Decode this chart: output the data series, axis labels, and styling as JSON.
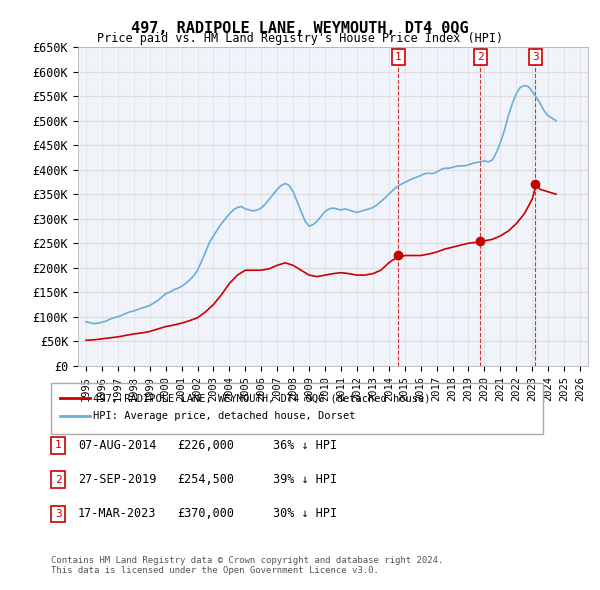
{
  "title": "497, RADIPOLE LANE, WEYMOUTH, DT4 0QG",
  "subtitle": "Price paid vs. HM Land Registry's House Price Index (HPI)",
  "ylabel_ticks": [
    "£0",
    "£50K",
    "£100K",
    "£150K",
    "£200K",
    "£250K",
    "£300K",
    "£350K",
    "£400K",
    "£450K",
    "£500K",
    "£550K",
    "£600K",
    "£650K"
  ],
  "ylim": [
    0,
    650000
  ],
  "yticks": [
    0,
    50000,
    100000,
    150000,
    200000,
    250000,
    300000,
    350000,
    400000,
    450000,
    500000,
    550000,
    600000,
    650000
  ],
  "xlim_start": 1994.5,
  "xlim_end": 2026.5,
  "hpi_color": "#6aaed6",
  "price_color": "#cc0000",
  "marker_color": "#cc0000",
  "vline_color": "#cc0000",
  "grid_color": "#dddddd",
  "bg_color": "#f0f4fa",
  "legend_label_red": "497, RADIPOLE LANE, WEYMOUTH, DT4 0QG (detached house)",
  "legend_label_blue": "HPI: Average price, detached house, Dorset",
  "footer": "Contains HM Land Registry data © Crown copyright and database right 2024.\nThis data is licensed under the Open Government Licence v3.0.",
  "sales": [
    {
      "num": 1,
      "year": 2014.6,
      "price": 226000,
      "date": "07-AUG-2014",
      "price_str": "£226,000",
      "pct": "36% ↓ HPI"
    },
    {
      "num": 2,
      "year": 2019.75,
      "price": 254500,
      "date": "27-SEP-2019",
      "price_str": "£254,500",
      "pct": "39% ↓ HPI"
    },
    {
      "num": 3,
      "year": 2023.2,
      "price": 370000,
      "date": "17-MAR-2023",
      "price_str": "£370,000",
      "pct": "30% ↓ HPI"
    }
  ],
  "hpi_data": {
    "years": [
      1995.0,
      1995.25,
      1995.5,
      1995.75,
      1996.0,
      1996.25,
      1996.5,
      1996.75,
      1997.0,
      1997.25,
      1997.5,
      1997.75,
      1998.0,
      1998.25,
      1998.5,
      1998.75,
      1999.0,
      1999.25,
      1999.5,
      1999.75,
      2000.0,
      2000.25,
      2000.5,
      2000.75,
      2001.0,
      2001.25,
      2001.5,
      2001.75,
      2002.0,
      2002.25,
      2002.5,
      2002.75,
      2003.0,
      2003.25,
      2003.5,
      2003.75,
      2004.0,
      2004.25,
      2004.5,
      2004.75,
      2005.0,
      2005.25,
      2005.5,
      2005.75,
      2006.0,
      2006.25,
      2006.5,
      2006.75,
      2007.0,
      2007.25,
      2007.5,
      2007.75,
      2008.0,
      2008.25,
      2008.5,
      2008.75,
      2009.0,
      2009.25,
      2009.5,
      2009.75,
      2010.0,
      2010.25,
      2010.5,
      2010.75,
      2011.0,
      2011.25,
      2011.5,
      2011.75,
      2012.0,
      2012.25,
      2012.5,
      2012.75,
      2013.0,
      2013.25,
      2013.5,
      2013.75,
      2014.0,
      2014.25,
      2014.5,
      2014.75,
      2015.0,
      2015.25,
      2015.5,
      2015.75,
      2016.0,
      2016.25,
      2016.5,
      2016.75,
      2017.0,
      2017.25,
      2017.5,
      2017.75,
      2018.0,
      2018.25,
      2018.5,
      2018.75,
      2019.0,
      2019.25,
      2019.5,
      2019.75,
      2020.0,
      2020.25,
      2020.5,
      2020.75,
      2021.0,
      2021.25,
      2021.5,
      2021.75,
      2022.0,
      2022.25,
      2022.5,
      2022.75,
      2023.0,
      2023.25,
      2023.5,
      2023.75,
      2024.0,
      2024.25,
      2024.5
    ],
    "values": [
      90000,
      88000,
      86000,
      87000,
      89000,
      91000,
      95000,
      98000,
      100000,
      103000,
      107000,
      110000,
      112000,
      115000,
      118000,
      120000,
      123000,
      128000,
      133000,
      140000,
      147000,
      150000,
      155000,
      158000,
      162000,
      168000,
      175000,
      183000,
      195000,
      213000,
      232000,
      252000,
      265000,
      278000,
      290000,
      300000,
      310000,
      318000,
      323000,
      325000,
      320000,
      318000,
      316000,
      318000,
      322000,
      330000,
      340000,
      350000,
      360000,
      368000,
      372000,
      368000,
      355000,
      335000,
      315000,
      295000,
      285000,
      288000,
      295000,
      305000,
      315000,
      320000,
      322000,
      320000,
      318000,
      320000,
      318000,
      315000,
      313000,
      315000,
      318000,
      320000,
      323000,
      328000,
      335000,
      342000,
      350000,
      358000,
      365000,
      370000,
      374000,
      378000,
      382000,
      385000,
      388000,
      392000,
      393000,
      392000,
      395000,
      400000,
      403000,
      403000,
      405000,
      407000,
      408000,
      408000,
      410000,
      413000,
      415000,
      416000,
      418000,
      416000,
      420000,
      435000,
      455000,
      480000,
      510000,
      535000,
      555000,
      568000,
      572000,
      570000,
      560000,
      548000,
      535000,
      520000,
      510000,
      505000,
      500000
    ]
  },
  "price_data": {
    "years": [
      1995.0,
      1995.5,
      1996.0,
      1996.5,
      1997.0,
      1997.5,
      1998.0,
      1998.5,
      1999.0,
      1999.5,
      2000.0,
      2000.5,
      2001.0,
      2001.5,
      2002.0,
      2002.5,
      2003.0,
      2003.5,
      2004.0,
      2004.5,
      2005.0,
      2005.5,
      2006.0,
      2006.5,
      2007.0,
      2007.5,
      2008.0,
      2008.5,
      2009.0,
      2009.5,
      2010.0,
      2010.5,
      2011.0,
      2011.5,
      2012.0,
      2012.5,
      2013.0,
      2013.5,
      2014.0,
      2014.25,
      2014.5,
      2014.75,
      2015.0,
      2015.5,
      2016.0,
      2016.5,
      2017.0,
      2017.5,
      2018.0,
      2018.5,
      2019.0,
      2019.5,
      2019.75,
      2020.0,
      2020.5,
      2021.0,
      2021.5,
      2022.0,
      2022.5,
      2023.0,
      2023.25,
      2023.5,
      2024.0,
      2024.5
    ],
    "values": [
      52000,
      53000,
      55000,
      57000,
      59000,
      62000,
      65000,
      67000,
      70000,
      75000,
      80000,
      83000,
      87000,
      92000,
      98000,
      110000,
      125000,
      145000,
      168000,
      185000,
      195000,
      195000,
      195000,
      198000,
      205000,
      210000,
      205000,
      195000,
      185000,
      182000,
      185000,
      188000,
      190000,
      188000,
      185000,
      185000,
      188000,
      195000,
      210000,
      216000,
      220000,
      222000,
      225000,
      225000,
      225000,
      228000,
      232000,
      238000,
      242000,
      246000,
      250000,
      252000,
      254500,
      255000,
      258000,
      265000,
      275000,
      290000,
      310000,
      340000,
      370000,
      360000,
      355000,
      350000
    ]
  }
}
